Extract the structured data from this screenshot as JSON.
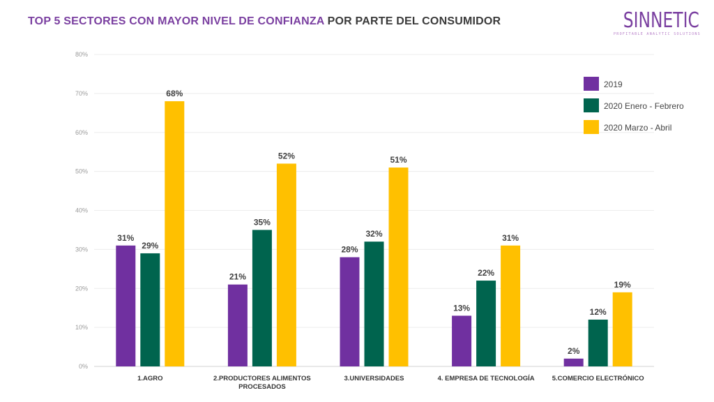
{
  "header": {
    "title_accent": "TOP 5 SECTORES CON MAYOR NIVEL DE CONFIANZA",
    "title_rest": "POR PARTE DEL CONSUMIDOR",
    "logo_name": "SINNETIC",
    "logo_tagline": "PROFITABLE ANALYTIC SOLUTIONS"
  },
  "chart_data": {
    "type": "bar",
    "title": "",
    "xlabel": "",
    "ylabel": "",
    "ylim": [
      0,
      80
    ],
    "yticks": [
      0,
      10,
      20,
      30,
      40,
      50,
      60,
      70,
      80
    ],
    "ytick_suffix": "%",
    "grid": true,
    "legend_position": "top-right",
    "categories": [
      [
        "1.AGRO"
      ],
      [
        "2.PRODUCTORES ALIMENTOS",
        "PROCESADOS"
      ],
      [
        "3.UNIVERSIDADES"
      ],
      [
        "4. EMPRESA DE TECNOLOGÍA"
      ],
      [
        "5.COMERCIO ELECTRÓNICO"
      ]
    ],
    "series": [
      {
        "name": "2019",
        "color": "#7030a0",
        "values": [
          31,
          21,
          28,
          13,
          2
        ]
      },
      {
        "name": "2020 Enero - Febrero",
        "color": "#00644e",
        "values": [
          29,
          35,
          32,
          22,
          12
        ]
      },
      {
        "name": "2020 Marzo - Abril",
        "color": "#ffc000",
        "values": [
          68,
          52,
          51,
          31,
          19
        ]
      }
    ],
    "data_label_suffix": "%"
  }
}
